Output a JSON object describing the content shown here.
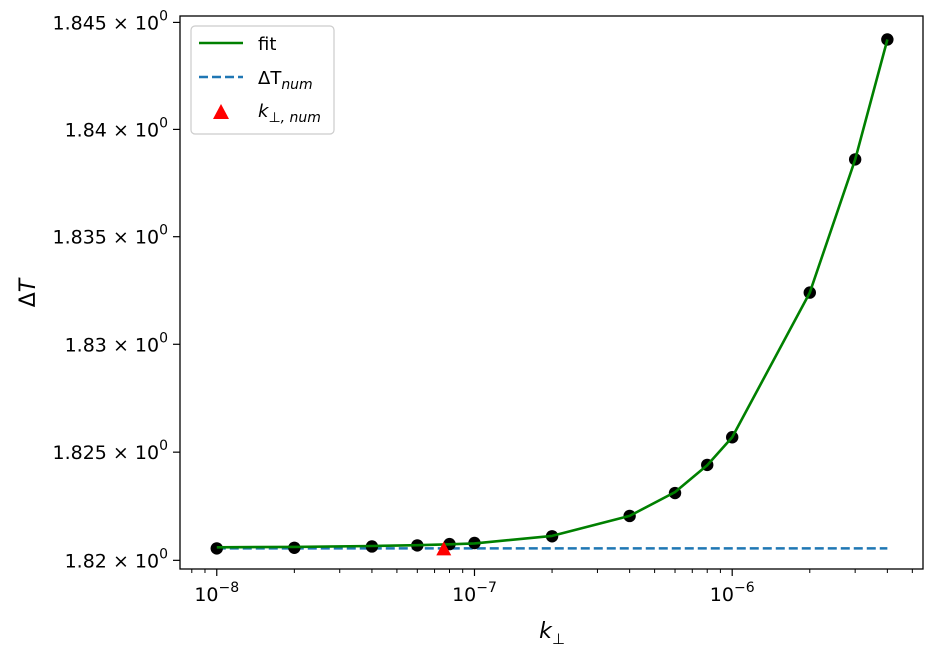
{
  "chart_data": {
    "type": "line",
    "xlabel": "k⊥",
    "ylabel": "ΔT",
    "xscale": "log",
    "yscale": "log",
    "xlim": [
      7.2e-09,
      5.5e-06
    ],
    "ylim": [
      1.8196,
      1.8453
    ],
    "x_ticks": [
      {
        "value": 1e-08,
        "base": "10",
        "exp": "−8"
      },
      {
        "value": 1e-07,
        "base": "10",
        "exp": "−7"
      },
      {
        "value": 1e-06,
        "base": "10",
        "exp": "−6"
      }
    ],
    "y_ticks": [
      {
        "value": 1.82,
        "mantissa": "1.82 × 10",
        "exp": "0"
      },
      {
        "value": 1.825,
        "mantissa": "1.825 × 10",
        "exp": "0"
      },
      {
        "value": 1.83,
        "mantissa": "1.83 × 10",
        "exp": "0"
      },
      {
        "value": 1.835,
        "mantissa": "1.835 × 10",
        "exp": "0"
      },
      {
        "value": 1.84,
        "mantissa": "1.84 × 10",
        "exp": "0"
      },
      {
        "value": 1.845,
        "mantissa": "1.845 × 10",
        "exp": "0"
      }
    ],
    "series": [
      {
        "kind": "scatter",
        "color": "#000000",
        "x": [
          1e-08,
          2e-08,
          4e-08,
          6e-08,
          8e-08,
          1e-07,
          2e-07,
          4e-07,
          6e-07,
          8e-07,
          1e-06,
          2e-06,
          3e-06,
          4e-06
        ],
        "y": [
          1.82055,
          1.82058,
          1.82064,
          1.82069,
          1.82075,
          1.8208,
          1.82111,
          1.82205,
          1.82311,
          1.82441,
          1.82569,
          1.8324,
          1.8386,
          1.8442
        ]
      },
      {
        "name": "fit",
        "kind": "line",
        "color": "#008000",
        "x": [
          1e-08,
          2e-08,
          4e-08,
          6e-08,
          8e-08,
          1e-07,
          2e-07,
          4e-07,
          6e-07,
          8e-07,
          1e-06,
          2e-06,
          3e-06,
          4e-06
        ],
        "y": [
          1.8206,
          1.82062,
          1.82066,
          1.8207,
          1.82074,
          1.82078,
          1.82113,
          1.82205,
          1.82315,
          1.82439,
          1.82569,
          1.8324,
          1.8386,
          1.8442
        ]
      },
      {
        "name": "ΔT",
        "name_sub": "num",
        "kind": "dashed-line",
        "color": "#1f77b4",
        "x": [
          1e-08,
          4e-06
        ],
        "y": [
          1.82055,
          1.82055
        ]
      },
      {
        "name": "k",
        "name_sub": "⊥, num",
        "kind": "marker",
        "marker": "triangle",
        "color": "#ff0000",
        "x": [
          7.6e-08
        ],
        "y": [
          1.82055
        ]
      }
    ],
    "legend_position": "top-left",
    "grid": false
  }
}
